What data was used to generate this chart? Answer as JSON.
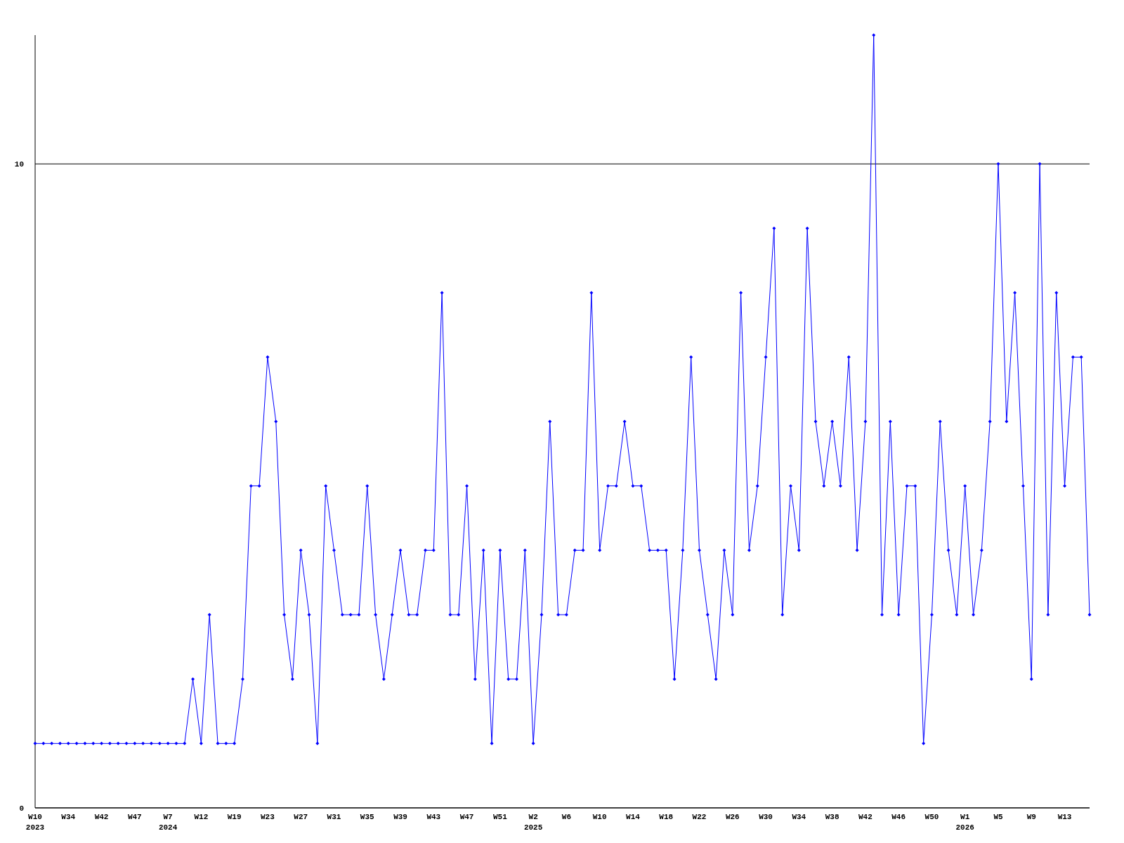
{
  "chart_data": {
    "type": "line",
    "categories": [
      "W10\n2023",
      null,
      null,
      null,
      "W34",
      null,
      null,
      null,
      "W42",
      null,
      null,
      null,
      "W47",
      null,
      null,
      null,
      "W7\n2024",
      null,
      null,
      null,
      "W12",
      null,
      null,
      null,
      "W19",
      null,
      null,
      null,
      "W23",
      null,
      null,
      null,
      "W27",
      null,
      null,
      null,
      "W31",
      null,
      null,
      null,
      "W35",
      null,
      null,
      null,
      "W39",
      null,
      null,
      null,
      "W43",
      null,
      null,
      null,
      "W47",
      null,
      null,
      null,
      "W51",
      null,
      null,
      null,
      "W2\n2025",
      null,
      null,
      null,
      "W6",
      null,
      null,
      null,
      "W10",
      null,
      null,
      null,
      "W14",
      null,
      null,
      null,
      "W18",
      null,
      null,
      null,
      "W22",
      null,
      null,
      null,
      "W26",
      null,
      null,
      null,
      "W30",
      null,
      null,
      null,
      "W34",
      null,
      null,
      null,
      "W38",
      null,
      null,
      null,
      "W42",
      null,
      null,
      null,
      "W46",
      null,
      null,
      null,
      "W50",
      null,
      null,
      null,
      "W1\n2026",
      null,
      null,
      null,
      "W5",
      null,
      null,
      null,
      "W9",
      null,
      null,
      null,
      "W13",
      null,
      null,
      null
    ],
    "series": [
      {
        "color": "#0000ff",
        "values": [
          1,
          1,
          1,
          1,
          1,
          1,
          1,
          1,
          1,
          1,
          1,
          1,
          1,
          1,
          1,
          1,
          1,
          1,
          1,
          2,
          1,
          3,
          1,
          1,
          1,
          2,
          5,
          5,
          7,
          6,
          3,
          2,
          4,
          3,
          1,
          5,
          4,
          3,
          3,
          3,
          5,
          3,
          2,
          3,
          4,
          3,
          3,
          4,
          4,
          8,
          3,
          3,
          5,
          2,
          4,
          1,
          4,
          2,
          2,
          4,
          1,
          3,
          6,
          3,
          3,
          4,
          4,
          8,
          4,
          5,
          5,
          6,
          5,
          5,
          4,
          4,
          4,
          2,
          4,
          7,
          4,
          3,
          2,
          4,
          3,
          8,
          4,
          5,
          7,
          9,
          3,
          5,
          4,
          9,
          6,
          5,
          6,
          5,
          7,
          4,
          6,
          12,
          3,
          6,
          3,
          5,
          5,
          1,
          3,
          6,
          4,
          3,
          5,
          3,
          4,
          6,
          10,
          6,
          8,
          5,
          2,
          10,
          3,
          8,
          5,
          7,
          7,
          3
        ]
      }
    ],
    "ylim": [
      0,
      12
    ],
    "yticks": [
      0,
      10
    ],
    "grid": "y",
    "marker": "diamond",
    "line_style": "solid"
  }
}
